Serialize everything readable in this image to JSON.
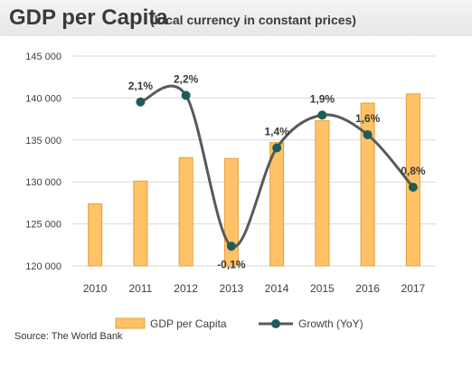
{
  "header": {
    "title": "GDP per Capita",
    "subtitle": "(local currency in constant prices)"
  },
  "source": "Source: The World Bank",
  "colors": {
    "bar_fill": "#FFC266",
    "bar_stroke": "#E0A040",
    "line": "#595959",
    "marker": "#1F5B5B",
    "grid": "#d9d9d9",
    "header_bg": "#eeeeee"
  },
  "chart_data": {
    "type": "bar",
    "categories": [
      "2010",
      "2011",
      "2012",
      "2013",
      "2014",
      "2015",
      "2016",
      "2017"
    ],
    "ylim": [
      120000,
      145000
    ],
    "yticks": [
      120000,
      125000,
      130000,
      135000,
      140000,
      145000
    ],
    "ytick_labels": [
      "120 000",
      "125 000",
      "130 000",
      "135 000",
      "140 000",
      "145 000"
    ],
    "grid": true,
    "legend_position": "bottom",
    "series": [
      {
        "name": "GDP per Capita",
        "type": "bar",
        "values": [
          127400,
          130100,
          132900,
          132800,
          134700,
          137300,
          139400,
          140500
        ]
      },
      {
        "name": "Growth (YoY)",
        "type": "line",
        "smooth": true,
        "values": [
          null,
          2.1,
          2.2,
          -0.1,
          1.4,
          1.9,
          1.6,
          0.8
        ],
        "labels": [
          null,
          "2,1%",
          "2,2%",
          "-0,1%",
          "1,4%",
          "1,9%",
          "1,6%",
          "0,8%"
        ],
        "ylim": [
          -0.4,
          2.8
        ]
      }
    ]
  }
}
